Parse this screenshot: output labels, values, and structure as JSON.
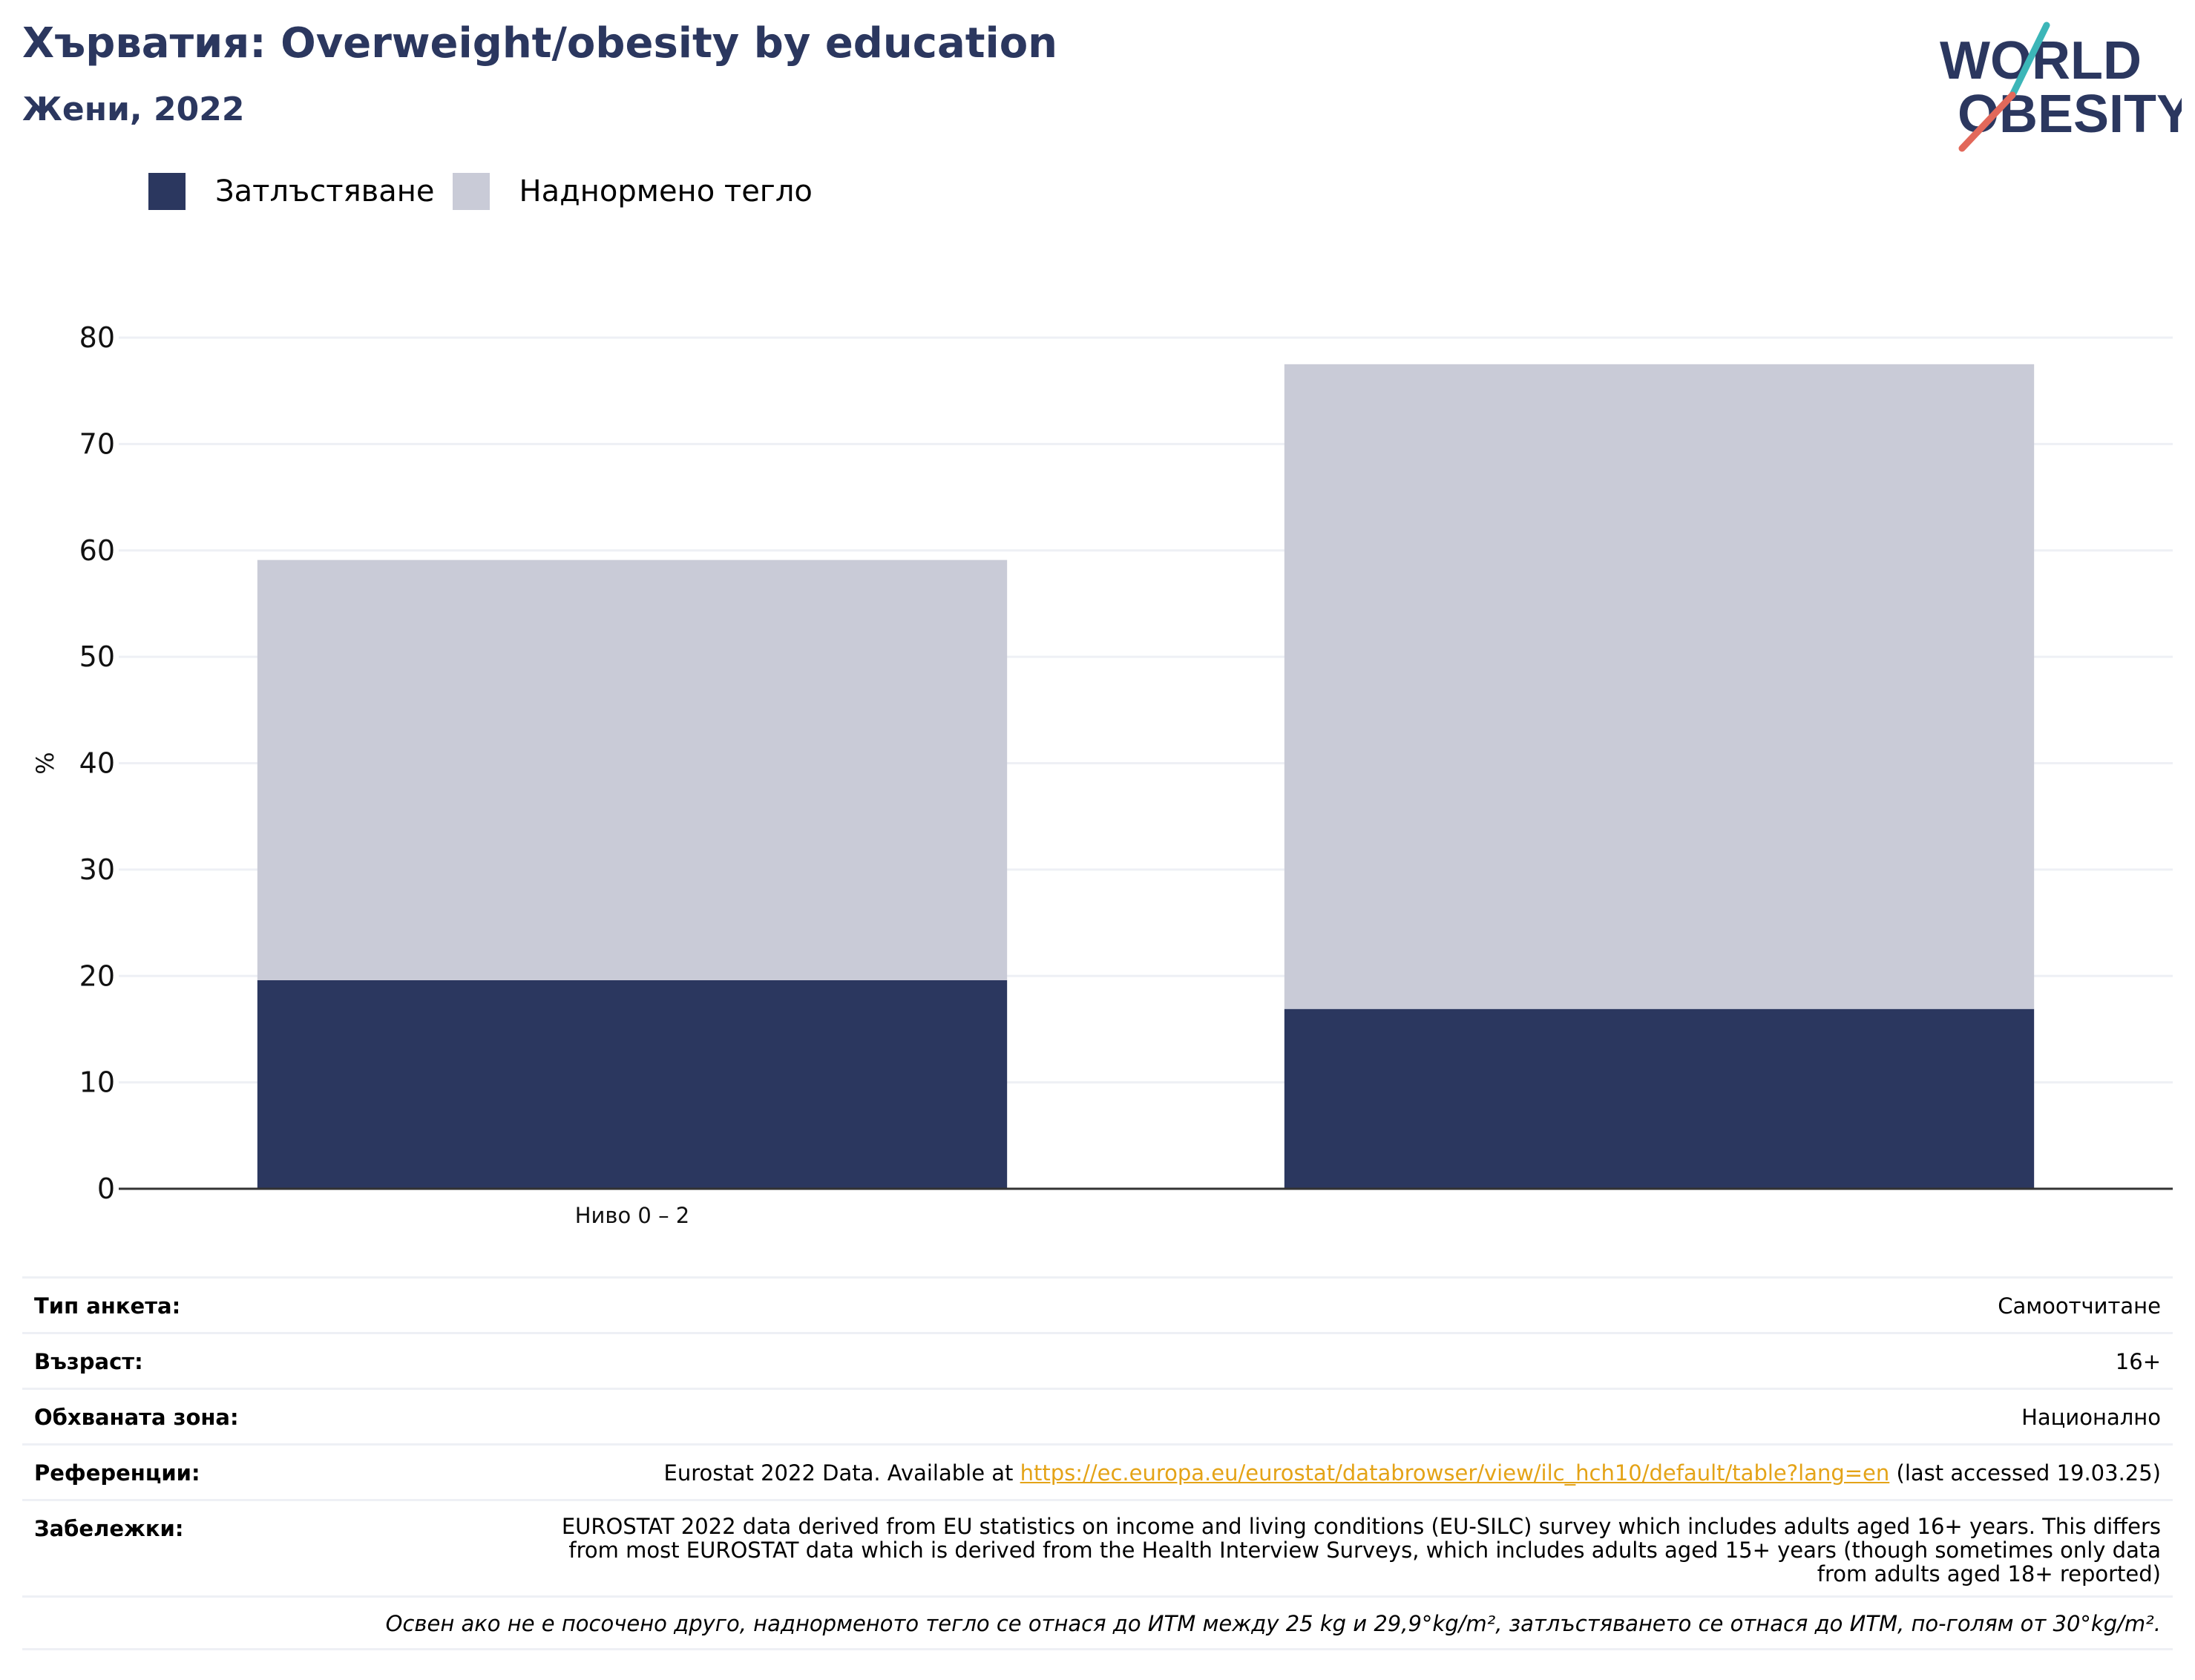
{
  "header": {
    "title": "Хърватия: Overweight/obesity by education",
    "subtitle": "Жени, 2022"
  },
  "logo": {
    "line1": "WORLD",
    "line2": "OBESITY",
    "icon": "world-obesity-logo"
  },
  "colors": {
    "obesity": "#2b375f",
    "overweight": "#c9cbd7",
    "accent_teal": "#3cb6b8",
    "accent_coral": "#e2685a",
    "grid": "#eef0f5",
    "axis": "#333333"
  },
  "legend": {
    "items": [
      {
        "label": "Затлъстяване",
        "color": "#2b375f"
      },
      {
        "label": "Наднормено тегло",
        "color": "#c9cbd7"
      }
    ]
  },
  "chart_data": {
    "type": "bar",
    "stacked": true,
    "categories": [
      "Ниво 0 – 2",
      ""
    ],
    "series": [
      {
        "name": "Затлъстяване",
        "color": "#2b375f",
        "values": [
          19.6,
          16.9
        ]
      },
      {
        "name": "Наднормено тегло",
        "color": "#c9cbd7",
        "values": [
          39.5,
          60.6
        ]
      }
    ],
    "ylabel": "%",
    "ylim": [
      0,
      80
    ],
    "yticks": [
      0,
      10,
      20,
      30,
      40,
      50,
      60,
      70,
      80
    ],
    "grid": true,
    "legend_position": "top-left"
  },
  "meta": {
    "survey_type": {
      "key": "Тип анкета:",
      "value": "Самоотчитане"
    },
    "age": {
      "key": "Възраст:",
      "value": "16+"
    },
    "area": {
      "key": "Обхваната зона:",
      "value": "Национално"
    },
    "references": {
      "key": "Референции:",
      "prefix": "Eurostat 2022 Data. Available at ",
      "link": "https://ec.europa.eu/eurostat/databrowser/view/ilc_hch10/default/table?lang=en",
      "suffix": " (last accessed 19.03.25)"
    },
    "notes": {
      "key": "Забележки:",
      "value": "EUROSTAT 2022 data derived from EU statistics on income and living conditions (EU-SILC) survey which includes adults aged 16+ years. This differs from most EUROSTAT data which is derived from the Health Interview Surveys, which includes adults aged 15+ years (though sometimes only data from adults aged 18+ reported)"
    },
    "footnote": "Освен ако не е посочено друго, наднорменото тегло се отнася до ИТМ между 25 kg и 29,9°kg/m², затлъстяването се отнася до ИТМ, по-голям от 30°kg/m²."
  }
}
